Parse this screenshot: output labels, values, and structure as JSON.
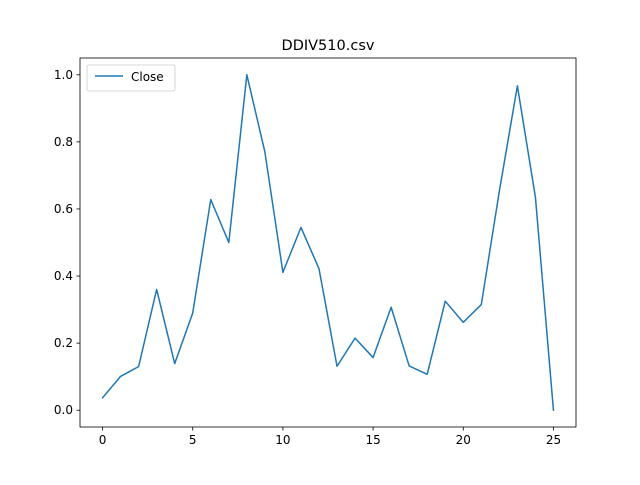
{
  "chart_data": {
    "type": "line",
    "title": "DDIV510.csv",
    "xlabel": "",
    "ylabel": "",
    "xlim": [
      -1.25,
      26.25
    ],
    "ylim": [
      -0.05,
      1.05
    ],
    "xticks": [
      0,
      5,
      10,
      15,
      20,
      25
    ],
    "xtick_labels": [
      "0",
      "5",
      "10",
      "15",
      "20",
      "25"
    ],
    "yticks": [
      0.0,
      0.2,
      0.4,
      0.6,
      0.8,
      1.0
    ],
    "ytick_labels": [
      "0.0",
      "0.2",
      "0.4",
      "0.6",
      "0.8",
      "1.0"
    ],
    "grid": false,
    "legend_position": "upper left",
    "series": [
      {
        "name": "Close",
        "color": "#1f77b4",
        "x": [
          0,
          1,
          2,
          3,
          4,
          5,
          6,
          7,
          8,
          9,
          10,
          11,
          12,
          13,
          14,
          15,
          16,
          17,
          18,
          19,
          20,
          21,
          22,
          23,
          24,
          25
        ],
        "values": [
          0.037,
          0.101,
          0.13,
          0.36,
          0.139,
          0.29,
          0.628,
          0.5,
          1.0,
          0.77,
          0.411,
          0.545,
          0.422,
          0.131,
          0.215,
          0.157,
          0.307,
          0.132,
          0.107,
          0.325,
          0.262,
          0.315,
          0.653,
          0.967,
          0.635,
          0.0
        ]
      }
    ]
  }
}
